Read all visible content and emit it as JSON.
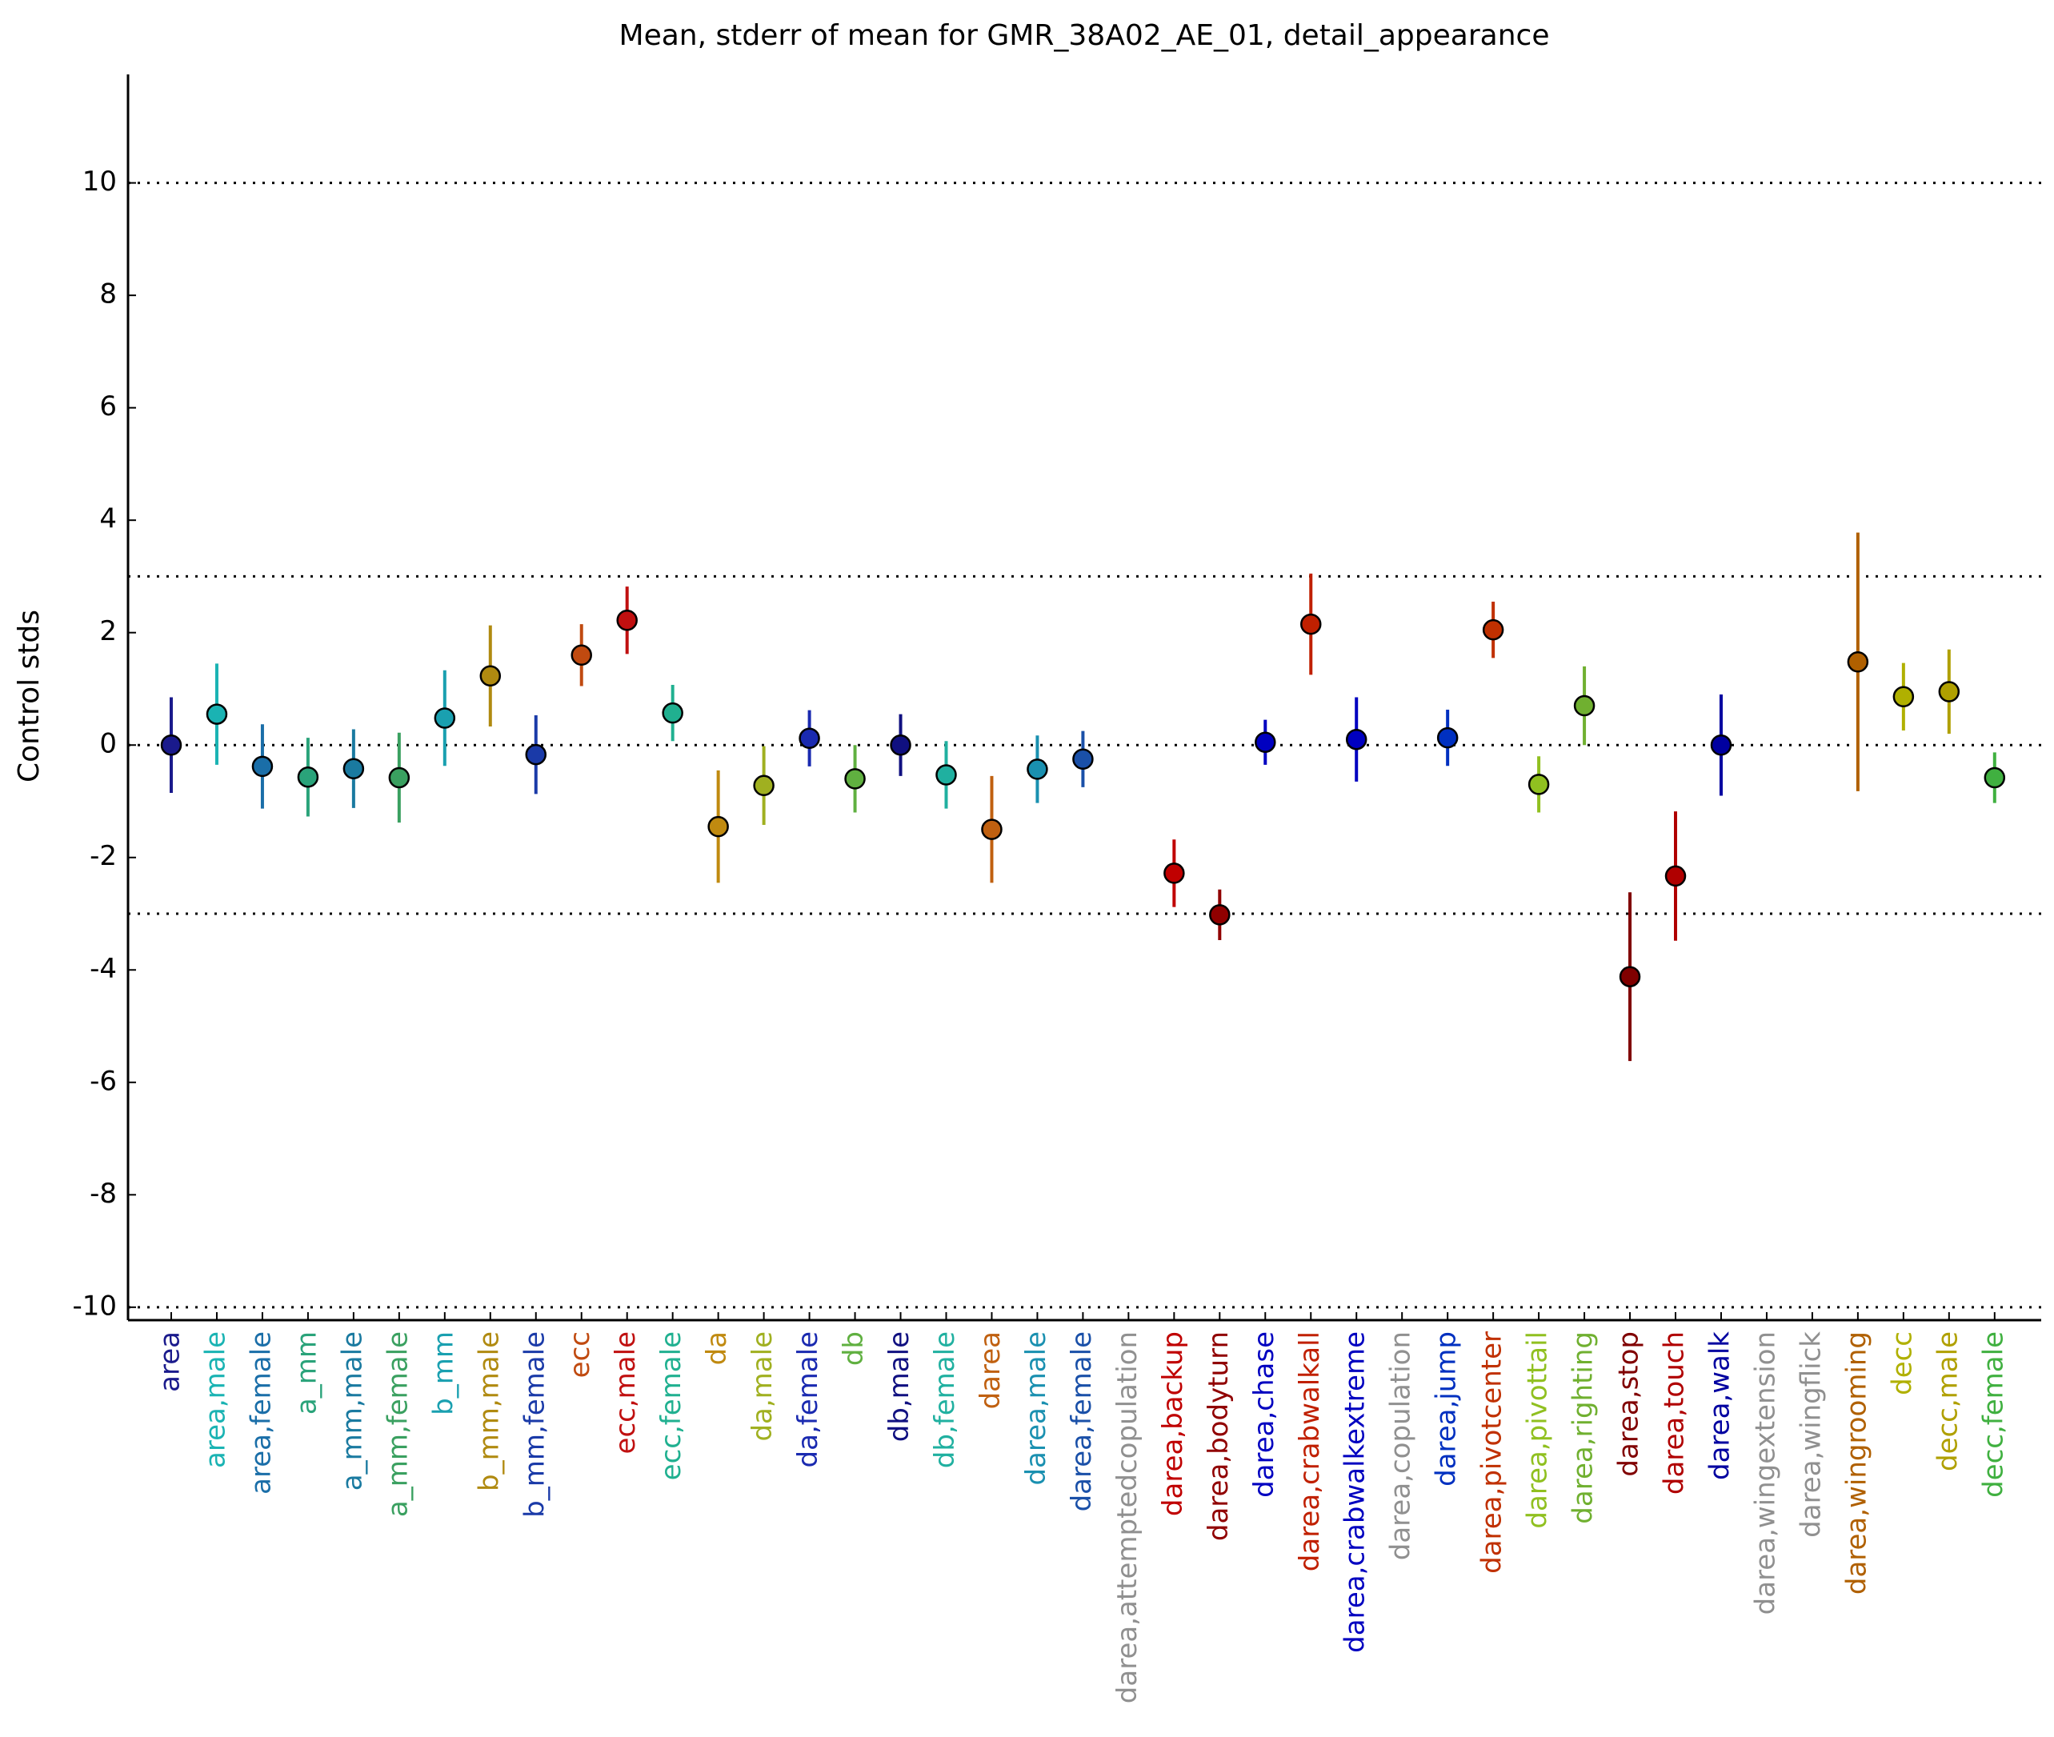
{
  "chart_data": {
    "type": "errorbar",
    "title": "Mean, stderr of mean for GMR_38A02_AE_01, detail_appearance",
    "ylabel": "Control stds",
    "categories": [
      "area",
      "area,male",
      "area,female",
      "a_mm",
      "a_mm,male",
      "a_mm,female",
      "b_mm",
      "b_mm,male",
      "b_mm,female",
      "ecc",
      "ecc,male",
      "ecc,female",
      "da",
      "da,male",
      "da,female",
      "db",
      "db,male",
      "db,female",
      "darea",
      "darea,male",
      "darea,female",
      "darea,attemptedcopulation",
      "darea,backup",
      "darea,bodyturn",
      "darea,chase",
      "darea,crabwalkall",
      "darea,crabwalkextreme",
      "darea,copulation",
      "darea,jump",
      "darea,pivotcenter",
      "darea,pivottail",
      "darea,righting",
      "darea,stop",
      "darea,touch",
      "darea,walk",
      "darea,wingextension",
      "darea,wingflick",
      "darea,wingrooming",
      "decc",
      "decc,male",
      "decc,female"
    ],
    "values": [
      0,
      0.55,
      -0.38,
      -0.57,
      -0.42,
      -0.58,
      0.48,
      1.23,
      -0.17,
      1.6,
      2.22,
      0.57,
      -1.45,
      -0.72,
      0.12,
      -0.6,
      0.0,
      -0.53,
      -1.5,
      -0.43,
      -0.25,
      null,
      -2.28,
      -3.02,
      0.05,
      2.15,
      0.1,
      null,
      0.13,
      2.05,
      -0.7,
      0.7,
      -4.12,
      -2.33,
      0.0,
      null,
      null,
      1.48,
      0.86,
      0.95,
      -0.58
    ],
    "errors": [
      0.85,
      0.9,
      0.75,
      0.7,
      0.7,
      0.8,
      0.85,
      0.9,
      0.7,
      0.55,
      0.6,
      0.5,
      1.0,
      0.7,
      0.5,
      0.6,
      0.55,
      0.6,
      0.95,
      0.6,
      0.5,
      null,
      0.6,
      0.45,
      0.4,
      0.9,
      0.75,
      null,
      0.5,
      0.5,
      0.5,
      0.7,
      1.5,
      1.15,
      0.9,
      null,
      null,
      2.3,
      0.6,
      0.75,
      0.45
    ],
    "colors": [
      "#1a1a8c",
      "#1ab3b3",
      "#1a6ea8",
      "#2aa37a",
      "#1a7aa0",
      "#3aa060",
      "#1aa0b0",
      "#b08a10",
      "#1a3aa8",
      "#c04a10",
      "#c01010",
      "#20b090",
      "#c08a10",
      "#a0b020",
      "#1a2ab0",
      "#60b040",
      "#101080",
      "#20b0a0",
      "#c06010",
      "#1a90b0",
      "#1a50a8",
      "#909090",
      "#c00000",
      "#900000",
      "#0000c0",
      "#c02000",
      "#0000c0",
      "#909090",
      "#0030c0",
      "#c03000",
      "#90c020",
      "#70b030",
      "#800000",
      "#b00000",
      "#0000a0",
      "#909090",
      "#909090",
      "#b06000",
      "#b0b000",
      "#b0a000",
      "#40b040"
    ],
    "ylim": [
      -10.23,
      11.93
    ],
    "yticks": [
      -10,
      -8,
      -6,
      -4,
      -2,
      0,
      2,
      4,
      6,
      8,
      10
    ],
    "hlines": [
      -10,
      -3,
      0,
      3,
      10
    ]
  }
}
